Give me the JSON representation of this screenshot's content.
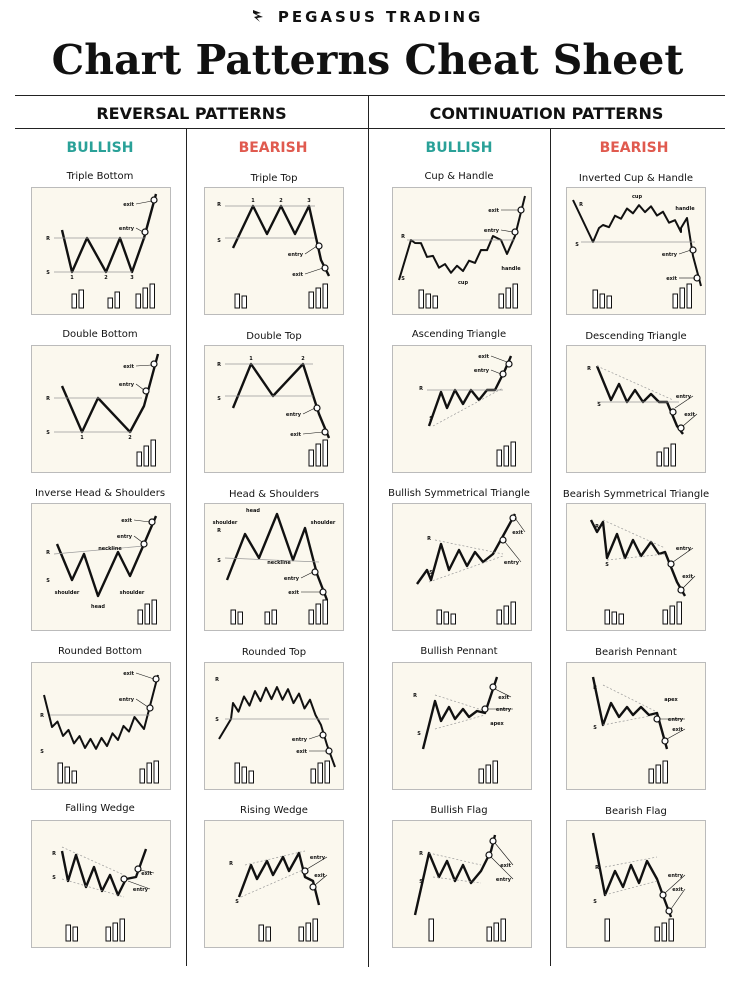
{
  "brand": {
    "name": "PEGASUS TRADING",
    "logo_icon": "pegasus-wing-icon"
  },
  "title": "Chart Patterns Cheat Sheet",
  "groups": [
    {
      "label": "REVERSAL PATTERNS"
    },
    {
      "label": "CONTINUATION PATTERNS"
    }
  ],
  "columns": [
    {
      "label": "BULLISH",
      "color": "#2aa198"
    },
    {
      "label": "BEARISH",
      "color": "#e05a4f"
    },
    {
      "label": "BULLISH",
      "color": "#2aa198"
    },
    {
      "label": "BEARISH",
      "color": "#e05a4f"
    }
  ],
  "patterns": [
    [
      "Triple Bottom",
      "Double Bottom",
      "Inverse Head & Shoulders",
      "Rounded Bottom",
      "Falling Wedge"
    ],
    [
      "Triple Top",
      "Double Top",
      "Head & Shoulders",
      "Rounded Top",
      "Rising Wedge"
    ],
    [
      "Cup & Handle",
      "Ascending Triangle",
      "Bullish Symmetrical Triangle",
      "Bullish Pennant",
      "Bullish Flag"
    ],
    [
      "Inverted Cup & Handle",
      "Descending Triangle",
      "Bearish Symmetrical Triangle",
      "Bearish Pennant",
      "Bearish Flag"
    ]
  ],
  "chart_labels": {
    "exit": "exit",
    "entry": "entry",
    "r": "R",
    "s": "S",
    "n1": "1",
    "n2": "2",
    "n3": "3",
    "cup": "cup",
    "handle": "handle",
    "neckline": "neckline",
    "shoulder": "shoulder",
    "head": "head",
    "apex": "apex"
  }
}
